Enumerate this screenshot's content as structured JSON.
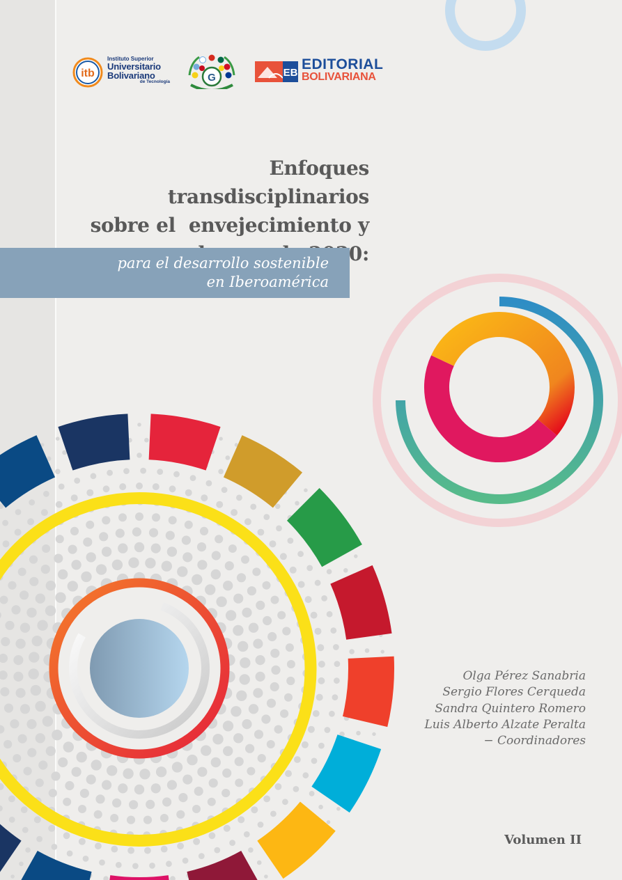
{
  "logos": {
    "itb": {
      "badge": "itb",
      "line1": "Instituto Superior",
      "line2": "Universitario",
      "line3": "Bolivariano",
      "line4": "de Tecnología"
    },
    "consortium": {
      "letter": "G"
    },
    "editorial": {
      "badge": "EB",
      "line1": "EDITORIAL",
      "line2": "BOLIVARIANA"
    }
  },
  "title": {
    "line1": "Enfoques transdisciplinarios",
    "line2": "sobre el  envejecimiento y",
    "line3": "la agenda 2030:"
  },
  "subtitle": {
    "line1": "para el desarrollo sostenible",
    "line2": "en Iberoamérica"
  },
  "authors": [
    "Olga Pérez Sanabria",
    "Sergio Flores Cerqueda",
    "Sandra Quintero Romero",
    "Luis Alberto Alzate Peralta",
    "− Coordinadores"
  ],
  "volume": "Volumen II",
  "colors": {
    "background": "#efeeec",
    "title_text": "#595959",
    "band": "#87a2b9",
    "sdg_wheel": [
      "#dd1367",
      "#0a4a84",
      "#1a3563",
      "#e5243b",
      "#d09c2b",
      "#279b48",
      "#c5192d",
      "#ef402b",
      "#00aed9",
      "#fdb713",
      "#8f1838"
    ],
    "yellow_ring": "#fbe018",
    "inner_ring": [
      "#f47b2a",
      "#e5243b"
    ],
    "center_disc": [
      "#7f9ab1",
      "#b5d6ee"
    ],
    "top_right_ring": "#c4dcef",
    "right_rings": [
      "#2e8dc5",
      "#57bb8a",
      "#e0185f",
      "#fbb816",
      "#e5101c"
    ]
  }
}
